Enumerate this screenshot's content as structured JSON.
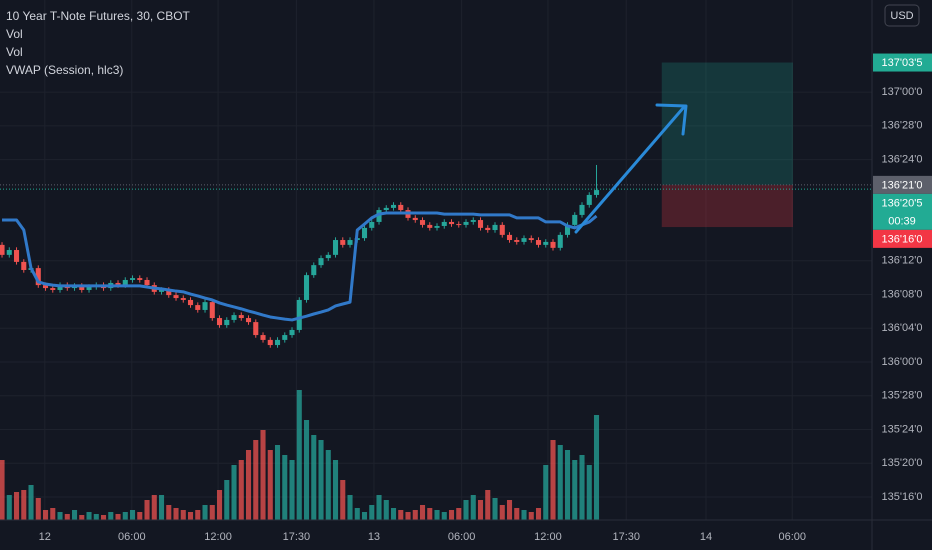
{
  "chart_data": {
    "type": "candlestick",
    "title": "10 Year T-Note Futures, 30, CBOT",
    "indicators": [
      "Vol",
      "Vol",
      "VWAP (Session, hlc3)"
    ],
    "currency": "USD",
    "up_color": "#26a69a",
    "down_color": "#ef5350",
    "open": [
      136.434,
      136.397,
      136.415,
      136.371,
      136.341,
      136.348,
      136.285,
      136.274,
      136.267,
      136.285,
      136.274,
      136.282,
      136.267,
      136.278,
      136.285,
      136.274,
      136.293,
      136.285,
      136.304,
      136.311,
      136.304,
      136.285,
      136.26,
      136.267,
      136.248,
      136.237,
      136.23,
      136.211,
      136.193,
      136.222,
      136.163,
      136.137,
      136.156,
      136.174,
      136.163,
      136.148,
      136.1,
      136.082,
      136.063,
      136.082,
      136.1,
      136.119,
      136.23,
      136.322,
      136.359,
      136.385,
      136.397,
      136.452,
      136.434,
      136.452,
      136.459,
      136.497,
      136.519,
      136.563,
      136.571,
      136.582,
      136.563,
      136.534,
      136.526,
      136.508,
      136.497,
      136.504,
      136.519,
      136.511,
      136.508,
      136.519,
      136.526,
      136.497,
      136.489,
      136.508,
      136.471,
      136.452,
      136.445,
      136.459,
      136.452,
      136.434,
      136.445,
      136.423,
      136.471,
      136.508,
      136.545,
      136.582,
      136.619
    ],
    "high": [
      136.444,
      136.425,
      136.425,
      136.381,
      136.358,
      136.358,
      136.295,
      136.284,
      136.295,
      136.295,
      136.292,
      136.292,
      136.288,
      136.295,
      136.295,
      136.303,
      136.303,
      136.314,
      136.321,
      136.321,
      136.314,
      136.295,
      136.277,
      136.277,
      136.258,
      136.247,
      136.24,
      136.221,
      136.232,
      136.232,
      136.173,
      136.166,
      136.184,
      136.184,
      136.173,
      136.158,
      136.11,
      136.092,
      136.092,
      136.11,
      136.129,
      136.24,
      136.332,
      136.369,
      136.395,
      136.407,
      136.462,
      136.462,
      136.462,
      136.469,
      136.507,
      136.529,
      136.573,
      136.581,
      136.592,
      136.592,
      136.573,
      136.544,
      136.536,
      136.518,
      136.514,
      136.529,
      136.529,
      136.521,
      136.529,
      136.536,
      136.536,
      136.507,
      136.518,
      136.518,
      136.481,
      136.462,
      136.469,
      136.469,
      136.462,
      136.455,
      136.455,
      136.481,
      136.518,
      136.555,
      136.592,
      136.629,
      136.73
    ],
    "low": [
      136.387,
      136.387,
      136.361,
      136.331,
      136.331,
      136.275,
      136.264,
      136.257,
      136.257,
      136.264,
      136.264,
      136.257,
      136.257,
      136.268,
      136.264,
      136.264,
      136.275,
      136.275,
      136.294,
      136.294,
      136.275,
      136.25,
      136.25,
      136.238,
      136.227,
      136.22,
      136.201,
      136.183,
      136.183,
      136.153,
      136.127,
      136.127,
      136.146,
      136.153,
      136.138,
      136.09,
      136.072,
      136.053,
      136.053,
      136.072,
      136.09,
      136.109,
      136.22,
      136.312,
      136.349,
      136.375,
      136.387,
      136.424,
      136.424,
      136.442,
      136.449,
      136.487,
      136.509,
      136.553,
      136.561,
      136.553,
      136.524,
      136.516,
      136.498,
      136.487,
      136.487,
      136.494,
      136.501,
      136.498,
      136.498,
      136.509,
      136.487,
      136.479,
      136.479,
      136.461,
      136.442,
      136.435,
      136.435,
      136.442,
      136.424,
      136.424,
      136.413,
      136.413,
      136.461,
      136.498,
      136.535,
      136.572,
      136.609
    ],
    "close": [
      136.397,
      136.415,
      136.371,
      136.341,
      136.348,
      136.285,
      136.274,
      136.267,
      136.285,
      136.274,
      136.282,
      136.267,
      136.278,
      136.285,
      136.274,
      136.293,
      136.285,
      136.304,
      136.311,
      136.304,
      136.285,
      136.26,
      136.267,
      136.248,
      136.237,
      136.23,
      136.211,
      136.193,
      136.222,
      136.163,
      136.137,
      136.156,
      136.174,
      136.163,
      136.148,
      136.1,
      136.082,
      136.063,
      136.082,
      136.1,
      136.119,
      136.23,
      136.322,
      136.359,
      136.385,
      136.397,
      136.452,
      136.434,
      136.452,
      136.459,
      136.497,
      136.519,
      136.563,
      136.571,
      136.582,
      136.563,
      136.534,
      136.526,
      136.508,
      136.497,
      136.504,
      136.519,
      136.511,
      136.508,
      136.519,
      136.526,
      136.497,
      136.489,
      136.508,
      136.471,
      136.452,
      136.445,
      136.459,
      136.452,
      136.434,
      136.445,
      136.423,
      136.471,
      136.508,
      136.545,
      136.582,
      136.619,
      136.637
    ],
    "volume": [
      60,
      25,
      28,
      30,
      35,
      22,
      10,
      12,
      8,
      6,
      10,
      5,
      8,
      6,
      5,
      8,
      6,
      8,
      10,
      8,
      20,
      25,
      25,
      15,
      12,
      10,
      8,
      10,
      15,
      15,
      30,
      40,
      55,
      60,
      70,
      80,
      90,
      70,
      75,
      65,
      60,
      130,
      100,
      85,
      80,
      70,
      60,
      40,
      25,
      12,
      8,
      15,
      25,
      20,
      12,
      10,
      8,
      10,
      15,
      12,
      10,
      8,
      10,
      12,
      20,
      25,
      20,
      30,
      22,
      15,
      20,
      12,
      10,
      8,
      12,
      55,
      80,
      75,
      70,
      60,
      65,
      55,
      105
    ],
    "vlim": [
      0,
      520
    ],
    "vwap": {
      "name": "VWAP (Session, hlc3)",
      "color": "#3179c9",
      "values": [
        136.526,
        136.526,
        136.526,
        136.489,
        136.348,
        136.297,
        136.289,
        136.285,
        136.282,
        136.282,
        136.282,
        136.282,
        136.282,
        136.282,
        136.282,
        136.282,
        136.282,
        136.282,
        136.282,
        136.282,
        136.278,
        136.274,
        136.271,
        136.267,
        136.263,
        136.26,
        136.252,
        136.245,
        136.237,
        136.23,
        136.219,
        136.211,
        136.204,
        136.197,
        136.189,
        136.182,
        136.174,
        136.167,
        136.163,
        136.159,
        136.156,
        136.163,
        136.17,
        136.178,
        136.185,
        136.193,
        136.208,
        136.215,
        136.222,
        136.489,
        136.511,
        136.534,
        136.548,
        136.552,
        136.552,
        136.552,
        136.552,
        136.552,
        136.552,
        136.552,
        136.552,
        136.548,
        136.548,
        136.548,
        136.548,
        136.548,
        136.545,
        136.545,
        136.545,
        136.545,
        136.545,
        136.534,
        136.534,
        136.534,
        136.534,
        136.519,
        136.519,
        136.519,
        136.504,
        136.497,
        136.508,
        136.519,
        136.541
      ]
    },
    "xlim": [
      -0.28,
      120
    ],
    "xticks": [
      {
        "value": 5.9,
        "label": "12"
      },
      {
        "value": 17.9,
        "label": "06:00"
      },
      {
        "value": 29.8,
        "label": "12:00"
      },
      {
        "value": 40.6,
        "label": "17:30"
      },
      {
        "value": 51.3,
        "label": "13"
      },
      {
        "value": 63.4,
        "label": "06:00"
      },
      {
        "value": 75.3,
        "label": "12:00"
      },
      {
        "value": 86.1,
        "label": "17:30"
      },
      {
        "value": 97.1,
        "label": "14"
      },
      {
        "value": 109,
        "label": "06:00"
      }
    ],
    "ylim": [
      135.415,
      137.341
    ],
    "yticks": [
      {
        "value": 137,
        "label": "137'00'0"
      },
      {
        "value": 136.875,
        "label": "136'28'0"
      },
      {
        "value": 136.75,
        "label": "136'24'0"
      },
      {
        "value": 136.375,
        "label": "136'12'0"
      },
      {
        "value": 136.25,
        "label": "136'08'0"
      },
      {
        "value": 136.125,
        "label": "136'04'0"
      },
      {
        "value": 136,
        "label": "136'00'0"
      },
      {
        "value": 135.875,
        "label": "135'28'0"
      },
      {
        "value": 135.75,
        "label": "135'24'0"
      },
      {
        "value": 135.625,
        "label": "135'20'0"
      },
      {
        "value": 135.5,
        "label": "135'16'0"
      }
    ],
    "grid": true,
    "markers": [
      {
        "value": 137.109375,
        "label": "137'03'5",
        "color": "#22ab94",
        "dotted": false
      },
      {
        "value": 136.65625,
        "label": "136'21'0",
        "color": "#5d606b",
        "dotted": true
      },
      {
        "value": 136.640625,
        "label": "136'20'5",
        "color": "#22ab94",
        "dotted": true,
        "countdown": "00:39"
      },
      {
        "value": 136.5,
        "label": "136'16'0",
        "color": "#f23645",
        "dotted": false
      }
    ],
    "position": {
      "x": [
        91.0,
        109.1
      ],
      "target": 137.109375,
      "entry": 136.65625,
      "stop": 136.5,
      "profit_color": "rgba(34,171,148,0.22)",
      "loss_color": "rgba(242,54,69,0.25)"
    }
  }
}
